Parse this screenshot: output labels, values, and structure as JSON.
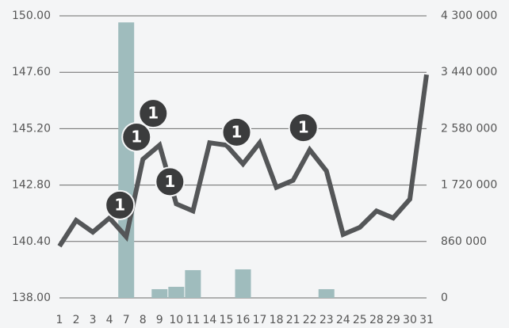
{
  "chart_data": {
    "type": "line-bar",
    "categories": [
      "1",
      "2",
      "3",
      "4",
      "7",
      "8",
      "9",
      "10",
      "11",
      "14",
      "15",
      "16",
      "17",
      "18",
      "21",
      "22",
      "23",
      "24",
      "25",
      "28",
      "29",
      "30",
      "31"
    ],
    "series": [
      {
        "type": "line",
        "color": "#545658",
        "axis": "y",
        "values": [
          140.2,
          141.3,
          140.8,
          141.4,
          140.6,
          143.9,
          144.5,
          142.0,
          141.7,
          144.6,
          144.5,
          143.7,
          144.6,
          142.7,
          143.0,
          144.3,
          143.4,
          140.7,
          141.0,
          141.7,
          141.4,
          142.2,
          147.5
        ]
      },
      {
        "type": "bar",
        "color": "#9fbcbd",
        "axis": "y2",
        "values": [
          null,
          null,
          null,
          null,
          4200000,
          null,
          133000,
          169000,
          423000,
          null,
          null,
          435000,
          null,
          null,
          null,
          null,
          133000,
          null,
          null,
          null,
          null,
          null,
          null
        ]
      }
    ],
    "annotations": [
      {
        "category": 4,
        "label": "1"
      },
      {
        "category": 5,
        "label": "1"
      },
      {
        "category": 6,
        "label": "1"
      },
      {
        "category": 7,
        "label": "1"
      },
      {
        "category": 11,
        "label": "1"
      },
      {
        "category": 15,
        "label": "1"
      }
    ],
    "ylim": [
      138,
      150
    ],
    "yticks": [
      {
        "value": 138,
        "label": "138.00"
      },
      {
        "value": 140.4,
        "label": "140.40"
      },
      {
        "value": 142.8,
        "label": "142.80"
      },
      {
        "value": 145.2,
        "label": "145.20"
      },
      {
        "value": 147.6,
        "label": "147.60"
      },
      {
        "value": 150,
        "label": "150.00"
      }
    ],
    "y2lim": [
      0,
      4300000
    ],
    "y2ticks": [
      0,
      {
        "value": 860000,
        "label": "860 000"
      },
      {
        "value": 1720000,
        "label": "1 720 000"
      },
      {
        "value": 2580000,
        "label": "2 580 000"
      },
      {
        "value": 3440000,
        "label": "3 440 000"
      },
      {
        "value": 4300000,
        "label": "4 300 000"
      }
    ],
    "grid": true
  }
}
